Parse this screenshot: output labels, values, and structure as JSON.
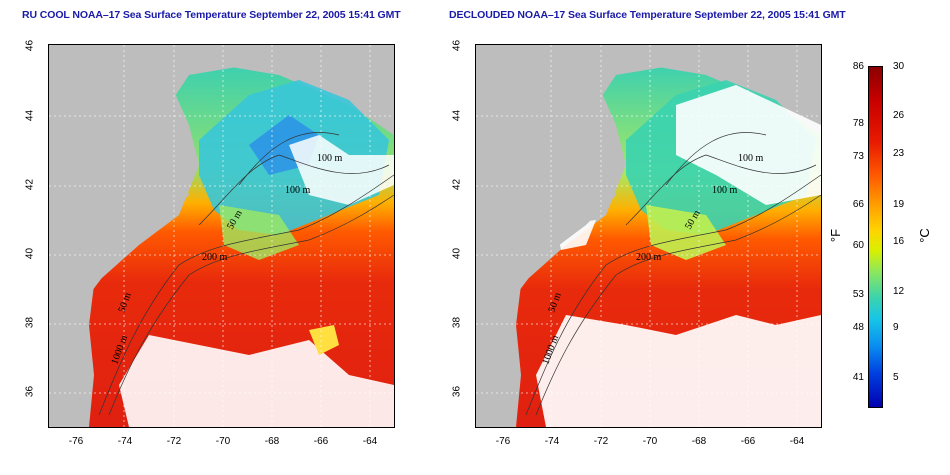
{
  "titles": {
    "left": "RU COOL NOAA–17 Sea Surface Temperature September 22, 2005 15:41 GMT",
    "right": "DECLOUDED NOAA–17 Sea Surface Temperature September 22, 2005 15:41 GMT"
  },
  "axes": {
    "lat_ticks": [
      "46",
      "44",
      "42",
      "40",
      "38",
      "36"
    ],
    "lon_ticks": [
      "-76",
      "-74",
      "-72",
      "-70",
      "-68",
      "-66",
      "-64"
    ]
  },
  "contours": {
    "labels": [
      "100 m",
      "100 m",
      "50 m",
      "200 m",
      "50 m",
      "1000 m"
    ]
  },
  "colorbar": {
    "fahrenheit_label": "°F",
    "celsius_label": "°C",
    "fahrenheit_ticks": [
      "86",
      "78",
      "73",
      "66",
      "60",
      "53",
      "48",
      "41"
    ],
    "celsius_ticks": [
      "30",
      "26",
      "23",
      "19",
      "16",
      "12",
      "9",
      "5"
    ]
  },
  "colors": {
    "title": "#1a1aa8",
    "land": "#bdbdbd",
    "cloud": "#ffffff",
    "warm_water": "#e82a0c"
  }
}
